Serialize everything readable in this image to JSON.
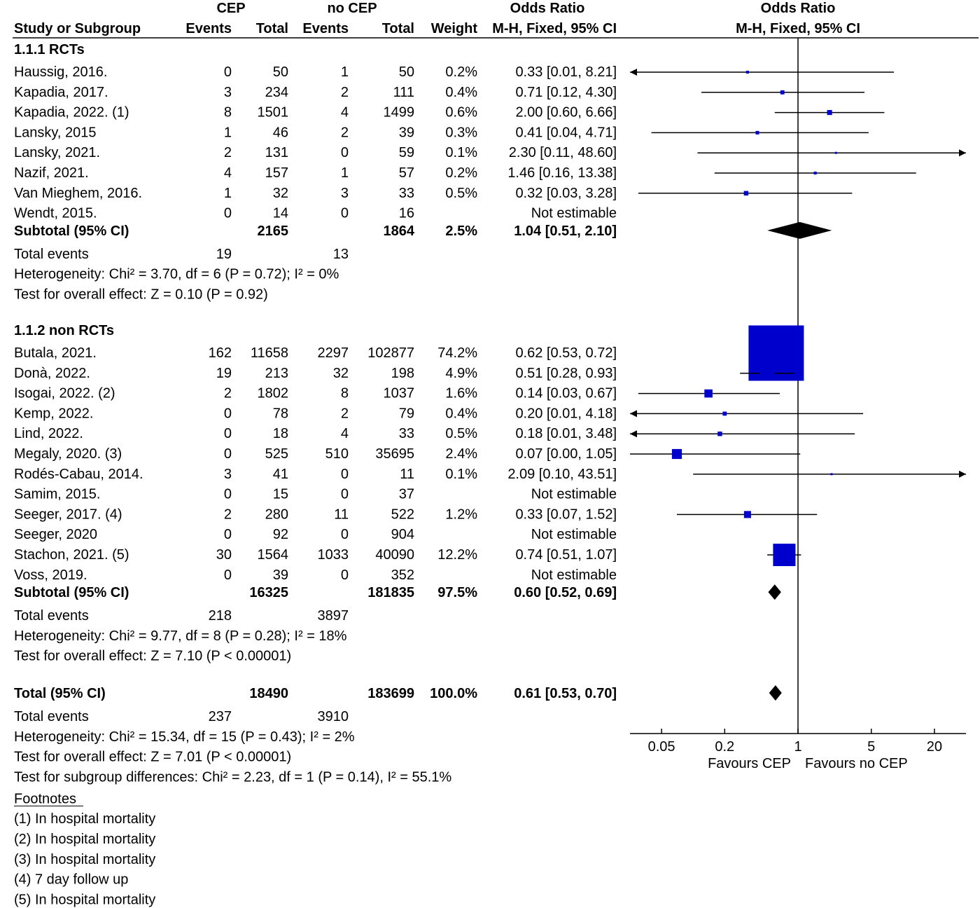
{
  "chart_data": {
    "type": "forest",
    "headers": {
      "group1": "CEP",
      "group2": "no CEP",
      "or_text": "Odds Ratio",
      "or_plot": "Odds Ratio",
      "col_study": "Study or Subgroup",
      "col_events1": "Events",
      "col_total1": "Total",
      "col_events2": "Events",
      "col_total2": "Total",
      "col_weight": "Weight",
      "col_method": "M-H, Fixed, 95% CI",
      "plot_method": "M-H, Fixed, 95% CI"
    },
    "subgroups": [
      {
        "title": "1.1.1 RCTs",
        "studies": [
          {
            "name": "Haussig, 2016.",
            "e1": "0",
            "n1": "50",
            "e2": "1",
            "n2": "50",
            "weight": "0.2%",
            "ci_text": "0.33 [0.01, 8.21]",
            "or": 0.33,
            "lo": 0.01,
            "hi": 8.21
          },
          {
            "name": "Kapadia, 2017.",
            "e1": "3",
            "n1": "234",
            "e2": "2",
            "n2": "111",
            "weight": "0.4%",
            "ci_text": "0.71 [0.12, 4.30]",
            "or": 0.71,
            "lo": 0.12,
            "hi": 4.3
          },
          {
            "name": "Kapadia, 2022. (1)",
            "e1": "8",
            "n1": "1501",
            "e2": "4",
            "n2": "1499",
            "weight": "0.6%",
            "ci_text": "2.00 [0.60, 6.66]",
            "or": 2.0,
            "lo": 0.6,
            "hi": 6.66
          },
          {
            "name": "Lansky, 2015",
            "e1": "1",
            "n1": "46",
            "e2": "2",
            "n2": "39",
            "weight": "0.3%",
            "ci_text": "0.41 [0.04, 4.71]",
            "or": 0.41,
            "lo": 0.04,
            "hi": 4.71
          },
          {
            "name": "Lansky, 2021.",
            "e1": "2",
            "n1": "131",
            "e2": "0",
            "n2": "59",
            "weight": "0.1%",
            "ci_text": "2.30 [0.11, 48.60]",
            "or": 2.3,
            "lo": 0.11,
            "hi": 48.6
          },
          {
            "name": "Nazif, 2021.",
            "e1": "4",
            "n1": "157",
            "e2": "1",
            "n2": "57",
            "weight": "0.2%",
            "ci_text": "1.46 [0.16, 13.38]",
            "or": 1.46,
            "lo": 0.16,
            "hi": 13.38
          },
          {
            "name": "Van Mieghem, 2016.",
            "e1": "1",
            "n1": "32",
            "e2": "3",
            "n2": "33",
            "weight": "0.5%",
            "ci_text": "0.32 [0.03, 3.28]",
            "or": 0.32,
            "lo": 0.03,
            "hi": 3.28
          },
          {
            "name": "Wendt, 2015.",
            "e1": "0",
            "n1": "14",
            "e2": "0",
            "n2": "16",
            "weight": "",
            "ci_text": "Not estimable",
            "or": null,
            "lo": null,
            "hi": null
          }
        ],
        "subtotal": {
          "label": "Subtotal (95% CI)",
          "n1": "2165",
          "n2": "1864",
          "weight": "2.5%",
          "ci_text": "1.04 [0.51, 2.10]",
          "or": 1.04,
          "lo": 0.51,
          "hi": 2.1
        },
        "total_events": {
          "label": "Total events",
          "e1": "19",
          "e2": "13"
        },
        "heterogeneity": "Heterogeneity: Chi² = 3.70, df = 6 (P = 0.72); I² = 0%",
        "overall_effect": "Test for overall effect: Z = 0.10 (P = 0.92)"
      },
      {
        "title": "1.1.2 non RCTs",
        "studies": [
          {
            "name": "Butala, 2021.",
            "e1": "162",
            "n1": "11658",
            "e2": "2297",
            "n2": "102877",
            "weight": "74.2%",
            "ci_text": "0.62 [0.53, 0.72]",
            "or": 0.62,
            "lo": 0.53,
            "hi": 0.72
          },
          {
            "name": "Donà, 2022.",
            "e1": "19",
            "n1": "213",
            "e2": "32",
            "n2": "198",
            "weight": "4.9%",
            "ci_text": "0.51 [0.28, 0.93]",
            "or": 0.51,
            "lo": 0.28,
            "hi": 0.93
          },
          {
            "name": "Isogai, 2022. (2)",
            "e1": "2",
            "n1": "1802",
            "e2": "8",
            "n2": "1037",
            "weight": "1.6%",
            "ci_text": "0.14 [0.03, 0.67]",
            "or": 0.14,
            "lo": 0.03,
            "hi": 0.67
          },
          {
            "name": "Kemp, 2022.",
            "e1": "0",
            "n1": "78",
            "e2": "2",
            "n2": "79",
            "weight": "0.4%",
            "ci_text": "0.20 [0.01, 4.18]",
            "or": 0.2,
            "lo": 0.01,
            "hi": 4.18
          },
          {
            "name": "Lind, 2022.",
            "e1": "0",
            "n1": "18",
            "e2": "4",
            "n2": "33",
            "weight": "0.5%",
            "ci_text": "0.18 [0.01, 3.48]",
            "or": 0.18,
            "lo": 0.01,
            "hi": 3.48
          },
          {
            "name": "Megaly, 2020. (3)",
            "e1": "0",
            "n1": "525",
            "e2": "510",
            "n2": "35695",
            "weight": "2.4%",
            "ci_text": "0.07 [0.00, 1.05]",
            "or": 0.07,
            "lo": 0.0,
            "hi": 1.05
          },
          {
            "name": "Rodés-Cabau, 2014.",
            "e1": "3",
            "n1": "41",
            "e2": "0",
            "n2": "11",
            "weight": "0.1%",
            "ci_text": "2.09 [0.10, 43.51]",
            "or": 2.09,
            "lo": 0.1,
            "hi": 43.51
          },
          {
            "name": "Samim, 2015.",
            "e1": "0",
            "n1": "15",
            "e2": "0",
            "n2": "37",
            "weight": "",
            "ci_text": "Not estimable",
            "or": null,
            "lo": null,
            "hi": null
          },
          {
            "name": "Seeger, 2017. (4)",
            "e1": "2",
            "n1": "280",
            "e2": "11",
            "n2": "522",
            "weight": "1.2%",
            "ci_text": "0.33 [0.07, 1.52]",
            "or": 0.33,
            "lo": 0.07,
            "hi": 1.52
          },
          {
            "name": "Seeger, 2020",
            "e1": "0",
            "n1": "92",
            "e2": "0",
            "n2": "904",
            "weight": "",
            "ci_text": "Not estimable",
            "or": null,
            "lo": null,
            "hi": null
          },
          {
            "name": "Stachon, 2021. (5)",
            "e1": "30",
            "n1": "1564",
            "e2": "1033",
            "n2": "40090",
            "weight": "12.2%",
            "ci_text": "0.74 [0.51, 1.07]",
            "or": 0.74,
            "lo": 0.51,
            "hi": 1.07
          },
          {
            "name": "Voss, 2019.",
            "e1": "0",
            "n1": "39",
            "e2": "0",
            "n2": "352",
            "weight": "",
            "ci_text": "Not estimable",
            "or": null,
            "lo": null,
            "hi": null
          }
        ],
        "subtotal": {
          "label": "Subtotal (95% CI)",
          "n1": "16325",
          "n2": "181835",
          "weight": "97.5%",
          "ci_text": "0.60 [0.52, 0.69]",
          "or": 0.6,
          "lo": 0.52,
          "hi": 0.69
        },
        "total_events": {
          "label": "Total events",
          "e1": "218",
          "e2": "3897"
        },
        "heterogeneity": "Heterogeneity: Chi² = 9.77, df = 8 (P = 0.28); I² = 18%",
        "overall_effect": "Test for overall effect: Z = 7.10 (P < 0.00001)"
      }
    ],
    "total": {
      "label": "Total (95% CI)",
      "n1": "18490",
      "n2": "183699",
      "weight": "100.0%",
      "ci_text": "0.61 [0.53, 0.70]",
      "or": 0.61,
      "lo": 0.53,
      "hi": 0.7,
      "total_events": {
        "label": "Total events",
        "e1": "237",
        "e2": "3910"
      },
      "heterogeneity": "Heterogeneity: Chi² = 15.34, df = 15 (P = 0.43); I² = 2%",
      "overall_effect": "Test for overall effect: Z = 7.01 (P < 0.00001)",
      "subgroup_diff": "Test for subgroup differences: Chi² = 2.23, df = 1 (P = 0.14), I² = 55.1%"
    },
    "axis": {
      "scale": "log",
      "range": [
        0.025,
        40
      ],
      "ticks": [
        0.05,
        0.2,
        1,
        5,
        20
      ],
      "tick_labels": [
        "0.05",
        "0.2",
        "1",
        "5",
        "20"
      ],
      "favours_left": "Favours CEP",
      "favours_right": "Favours no CEP"
    },
    "footnotes": {
      "title": "Footnotes",
      "items": [
        "(1) In hospital mortality",
        "(2) In hospital mortality",
        "(3) In hospital mortality",
        "(4) 7 day follow up",
        "(5) In hospital mortality"
      ]
    },
    "colors": {
      "square": "#0000cc",
      "diamond": "#000000",
      "line": "#000000"
    }
  }
}
